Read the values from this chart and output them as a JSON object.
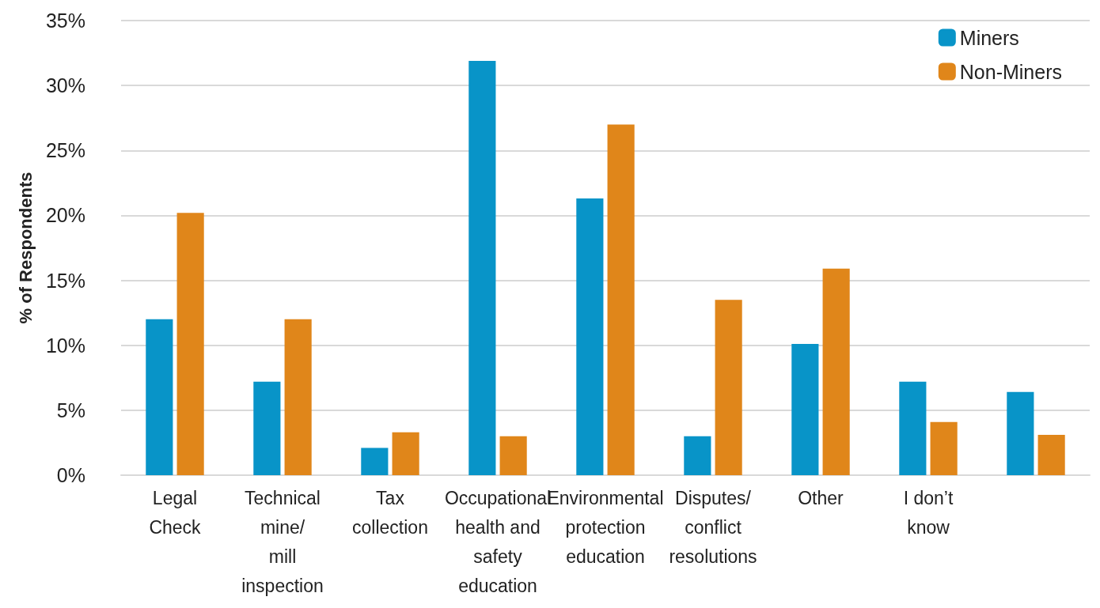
{
  "chart_data": {
    "type": "bar",
    "ylabel": "% of Respondents",
    "categories": [
      "Legal\nCheck",
      "Technical\nmine/\nmill\ninspection",
      "Tax\ncollection",
      "Occupational\nhealth and\nsafety\neducation",
      "Environmental\nprotection\neducation",
      "Disputes/\nconflict\nresolutions",
      "Other",
      "I don’t\nknow",
      null
    ],
    "series": [
      {
        "name": "Miners",
        "color": "#0894c8",
        "values": [
          12,
          7.2,
          2.1,
          31.9,
          21.3,
          3,
          10.1,
          7.2,
          6.4
        ]
      },
      {
        "name": "Non-Miners",
        "color": "#e0861a",
        "values": [
          20.2,
          12,
          3.3,
          3,
          27,
          13.5,
          15.9,
          4.1,
          3.1
        ]
      }
    ],
    "ylim": [
      0,
      35
    ],
    "yticks": [
      {
        "value": 0,
        "label": "0%"
      },
      {
        "value": 5,
        "label": "5%"
      },
      {
        "value": 10,
        "label": "10%"
      },
      {
        "value": 15,
        "label": "15%"
      },
      {
        "value": 20,
        "label": "20%"
      },
      {
        "value": 25,
        "label": "25%"
      },
      {
        "value": 30,
        "label": "30%"
      },
      {
        "value": 35,
        "label": "35%"
      }
    ],
    "grid": "y",
    "legend": "top right"
  }
}
